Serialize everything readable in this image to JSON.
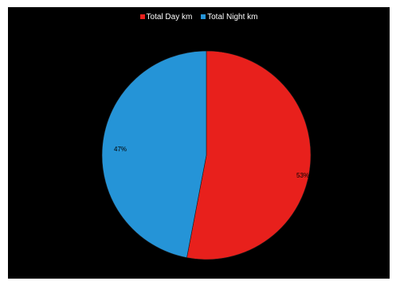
{
  "chart_data": {
    "type": "pie",
    "labels": [
      "Total Day km",
      "Total Night km"
    ],
    "values": [
      53,
      47
    ],
    "data_labels": [
      "53%",
      "47%"
    ],
    "colors": [
      "#e8201c",
      "#2594d7"
    ],
    "legend_position": "top",
    "background": "#000000"
  }
}
